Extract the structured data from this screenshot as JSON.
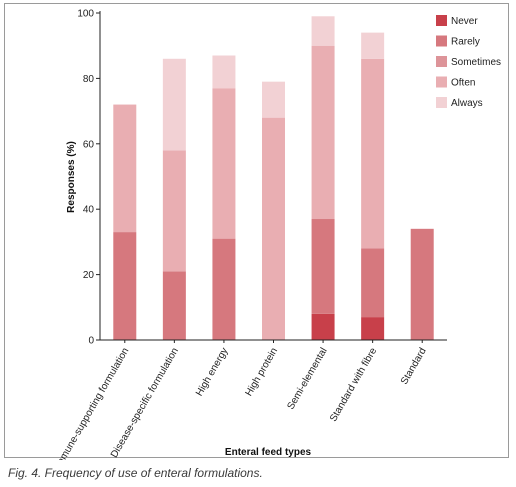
{
  "chart_data": {
    "type": "bar",
    "stacked": true,
    "categories": [
      "Immune-supporting formulation",
      "Disease-specific formulation",
      "High energy",
      "High protein",
      "Semi-elemental",
      "Standard with fibre",
      "Standard"
    ],
    "series": [
      {
        "name": "Never",
        "color": "#c8404a",
        "values": [
          0,
          0,
          0,
          0,
          8,
          7,
          0
        ]
      },
      {
        "name": "Rarely",
        "color": "#d6787e",
        "values": [
          33,
          21,
          31,
          0,
          29,
          21,
          34
        ]
      },
      {
        "name": "Sometimes",
        "color": "#dd9499",
        "values": [
          0,
          0,
          0,
          0,
          0,
          0,
          0
        ]
      },
      {
        "name": "Often",
        "color": "#e9aeb2",
        "values": [
          39,
          37,
          46,
          68,
          53,
          58,
          0
        ]
      },
      {
        "name": "Always",
        "color": "#f2d1d4",
        "values": [
          0,
          28,
          10,
          11,
          9,
          8,
          0
        ]
      }
    ],
    "xlabel": "Enteral feed types",
    "ylabel": "Responses (%)",
    "ylim": [
      0,
      100
    ],
    "yticks": [
      0,
      20,
      40,
      60,
      80,
      100
    ],
    "legend_position": "top-right",
    "grid": false
  },
  "caption": "Fig. 4. Frequency of use of enteral formulations."
}
